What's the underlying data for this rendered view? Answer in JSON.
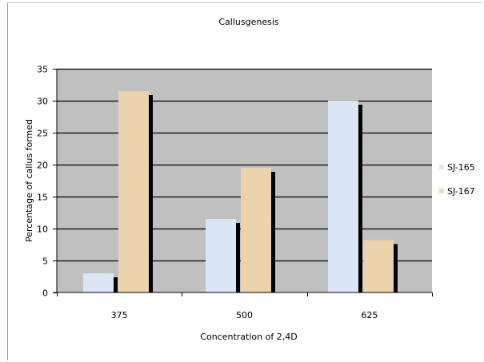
{
  "chart_data": {
    "type": "bar",
    "title": "Callusgenesis",
    "xlabel": "Concentration of 2,4D",
    "ylabel": "Percentage of callus formed",
    "categories": [
      "375",
      "500",
      "625"
    ],
    "series": [
      {
        "name": "SJ-165",
        "values": [
          3,
          11.5,
          30
        ],
        "color": "#dce8f6"
      },
      {
        "name": "SJ-167",
        "values": [
          31.5,
          19.5,
          8.2
        ],
        "color": "#efd9b4"
      }
    ],
    "ylim": [
      0,
      35
    ],
    "yticks": [
      0,
      5,
      10,
      15,
      20,
      25,
      30,
      35
    ],
    "grid": true,
    "legend": "right",
    "plot_background": "#c0c0c0"
  }
}
